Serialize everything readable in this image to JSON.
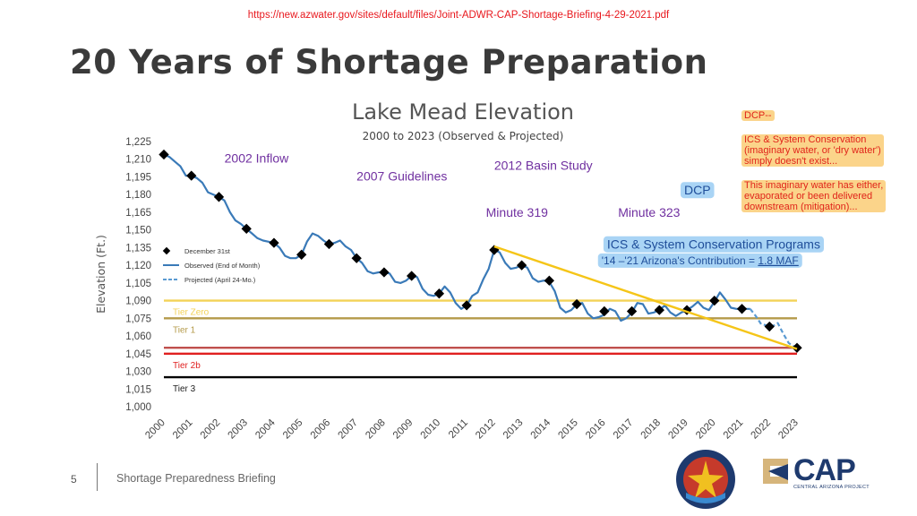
{
  "header": {
    "source_url": "https://new.azwater.gov/sites/default/files/Joint-ADWR-CAP-Shortage-Briefing-4-29-2021.pdf",
    "slide_title": "20 Years of Shortage Preparation"
  },
  "notes": {
    "dcp": "DCP--",
    "ics_1": "ICS & System Conservation",
    "ics_2": "(imaginary water, or 'dry water')",
    "ics_3": "simply doesn't exist...",
    "imag_1": "This imaginary water has either,",
    "imag_2": "evaporated or been delivered",
    "imag_3": "downstream (mitigation)..."
  },
  "footer": {
    "page_number": "5",
    "text": "Shortage Preparedness Briefing",
    "cap_logo_text": "CAP",
    "cap_logo_sub": "CENTRAL ARIZONA PROJECT",
    "adwr_seal_text": "ARIZONA DEPARTMENT OF WATER RESOURCES"
  },
  "colors": {
    "observed": "#3a7ab8",
    "trend": "#f5c518",
    "tier_zero": "#f3d257",
    "tier_1": "#b49a4a",
    "tier_2a": "#c0504d",
    "tier_2b": "#e02020",
    "tier_3": "#000000",
    "annotation_text": "#7030a0",
    "callout_bg": "#a9d4f5"
  },
  "chart_data": {
    "type": "line",
    "title": "Lake Mead Elevation",
    "subtitle": "2000 to 2023 (Observed & Projected)",
    "ylabel": "Elevation (Ft.)",
    "xlabel": "",
    "xlim": [
      2000,
      2023
    ],
    "ylim": [
      1000,
      1225
    ],
    "yticks": [
      "1,000",
      "1,015",
      "1,030",
      "1,045",
      "1,060",
      "1,075",
      "1,090",
      "1,105",
      "1,120",
      "1,135",
      "1,150",
      "1,165",
      "1,180",
      "1,195",
      "1,210",
      "1,225"
    ],
    "xticks": [
      "2000",
      "2001",
      "2002",
      "2003",
      "2004",
      "2005",
      "2006",
      "2007",
      "2008",
      "2009",
      "2010",
      "2011",
      "2012",
      "2013",
      "2014",
      "2015",
      "2016",
      "2017",
      "2018",
      "2019",
      "2020",
      "2021",
      "2022",
      "2023"
    ],
    "legend": {
      "position": "left",
      "entries": [
        "December 31st",
        "Observed (End of Month)",
        "Projected (April 24-Mo.)"
      ]
    },
    "series": [
      {
        "name": "Observed (End of Month)",
        "style": "solid",
        "x": [
          2000.0,
          2000.2,
          2000.4,
          2000.6,
          2000.8,
          2001.0,
          2001.2,
          2001.4,
          2001.6,
          2001.8,
          2002.0,
          2002.2,
          2002.4,
          2002.6,
          2002.8,
          2003.0,
          2003.2,
          2003.4,
          2003.6,
          2003.8,
          2004.0,
          2004.2,
          2004.4,
          2004.6,
          2004.8,
          2005.0,
          2005.2,
          2005.4,
          2005.6,
          2005.8,
          2006.0,
          2006.2,
          2006.4,
          2006.6,
          2006.8,
          2007.0,
          2007.2,
          2007.4,
          2007.6,
          2007.8,
          2008.0,
          2008.2,
          2008.4,
          2008.6,
          2008.8,
          2009.0,
          2009.2,
          2009.4,
          2009.6,
          2009.8,
          2010.0,
          2010.2,
          2010.4,
          2010.6,
          2010.8,
          2011.0,
          2011.2,
          2011.4,
          2011.6,
          2011.8,
          2012.0,
          2012.2,
          2012.4,
          2012.6,
          2012.8,
          2013.0,
          2013.2,
          2013.4,
          2013.6,
          2013.8,
          2014.0,
          2014.2,
          2014.4,
          2014.6,
          2014.8,
          2015.0,
          2015.2,
          2015.4,
          2015.6,
          2015.8,
          2016.0,
          2016.2,
          2016.4,
          2016.6,
          2016.8,
          2017.0,
          2017.2,
          2017.4,
          2017.6,
          2017.8,
          2018.0,
          2018.2,
          2018.4,
          2018.6,
          2018.8,
          2019.0,
          2019.2,
          2019.4,
          2019.6,
          2019.8,
          2020.0,
          2020.2,
          2020.4,
          2020.6,
          2020.8,
          2021.0,
          2021.3
        ],
        "y": [
          1214,
          1212,
          1208,
          1204,
          1196,
          1196,
          1194,
          1190,
          1182,
          1180,
          1178,
          1175,
          1165,
          1158,
          1155,
          1151,
          1147,
          1143,
          1141,
          1140,
          1139,
          1135,
          1128,
          1126,
          1126,
          1129,
          1140,
          1147,
          1145,
          1141,
          1138,
          1139,
          1141,
          1136,
          1133,
          1126,
          1122,
          1115,
          1113,
          1114,
          1114,
          1113,
          1106,
          1105,
          1107,
          1111,
          1110,
          1100,
          1095,
          1094,
          1096,
          1102,
          1097,
          1088,
          1083,
          1086,
          1094,
          1097,
          1108,
          1117,
          1133,
          1131,
          1122,
          1117,
          1118,
          1120,
          1118,
          1109,
          1106,
          1107,
          1106,
          1098,
          1084,
          1080,
          1082,
          1087,
          1088,
          1079,
          1075,
          1076,
          1078,
          1083,
          1081,
          1073,
          1075,
          1080,
          1088,
          1087,
          1079,
          1080,
          1082,
          1086,
          1080,
          1077,
          1080,
          1082,
          1085,
          1089,
          1084,
          1082,
          1089,
          1097,
          1091,
          1084,
          1083,
          1083,
          1083
        ]
      },
      {
        "name": "Projected (April 24-Mo.)",
        "style": "dashed",
        "x": [
          2021.3,
          2021.5,
          2021.7,
          2021.9,
          2022.1,
          2022.3,
          2022.5,
          2022.7,
          2022.9,
          2023.0
        ],
        "y": [
          1083,
          1077,
          1070,
          1069,
          1068,
          1071,
          1062,
          1054,
          1051,
          1050
        ]
      },
      {
        "name": "December 31st",
        "style": "markers",
        "x": [
          2000,
          2001,
          2002,
          2003,
          2004,
          2005,
          2006,
          2007,
          2008,
          2009,
          2010,
          2011,
          2012,
          2013,
          2014,
          2015,
          2016,
          2017,
          2018,
          2019,
          2020,
          2021,
          2022,
          2023
        ],
        "y": [
          1214,
          1196,
          1178,
          1151,
          1139,
          1129,
          1138,
          1126,
          1114,
          1111,
          1096,
          1086,
          1133,
          1120,
          1107,
          1087,
          1081,
          1081,
          1082,
          1082,
          1090,
          1083,
          1068,
          1050
        ]
      }
    ],
    "trend_line": {
      "x": [
        2012,
        2023
      ],
      "y": [
        1136,
        1049
      ]
    },
    "thresholds": [
      {
        "name": "Tier Zero",
        "y": 1090,
        "color": "#f3d257",
        "label": "Tier Zero"
      },
      {
        "name": "Tier 1",
        "y": 1075,
        "color": "#b49a4a",
        "label": "Tier 1"
      },
      {
        "name": "Tier 2a",
        "y": 1050,
        "color": "#c0504d",
        "label": ""
      },
      {
        "name": "Tier 2b",
        "y": 1045,
        "color": "#e02020",
        "label": "Tier 2b"
      },
      {
        "name": "Tier 3",
        "y": 1025,
        "color": "#000000",
        "label": "Tier 3"
      }
    ],
    "annotations": [
      {
        "text": "2002 Inflow",
        "x": 2002.2,
        "y": 1207
      },
      {
        "text": "2007 Guidelines",
        "x": 2007.0,
        "y": 1192
      },
      {
        "text": "2012 Basin Study",
        "x": 2012.0,
        "y": 1201
      },
      {
        "text": "Minute 319",
        "x": 2011.7,
        "y": 1161
      },
      {
        "text": "Minute 323",
        "x": 2016.5,
        "y": 1161
      },
      {
        "text": "DCP",
        "x": 2018.9,
        "y": 1180,
        "boxed": true
      },
      {
        "text": "ICS & System Conservation Programs",
        "x": 2016.1,
        "y": 1134,
        "boxed": true
      },
      {
        "text": "'14 –'21 Arizona's Contribution = ",
        "value": "1.8 MAF",
        "x": 2015.9,
        "y": 1121,
        "boxed": true
      }
    ]
  }
}
